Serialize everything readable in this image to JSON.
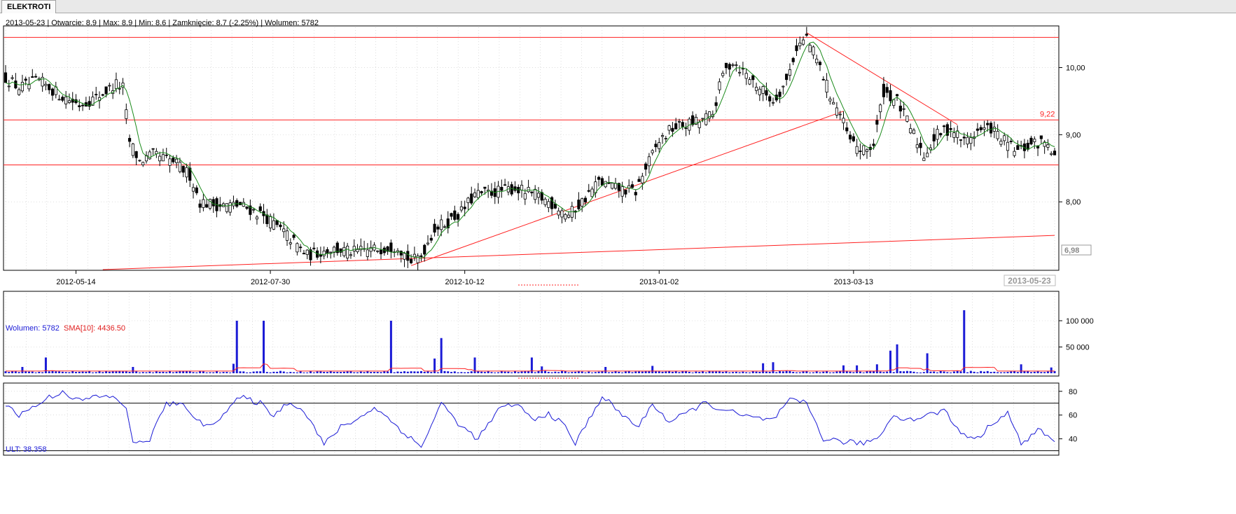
{
  "tab": {
    "label": "ELEKTROTI"
  },
  "info": {
    "text": "2013-05-23 | Otwarcie: 8.9 | Max: 8.9 | Min: 8.6 | Zamknięcie: 8.7 (-2.25%)   | Wolumen: 5782"
  },
  "volume_header": {
    "label": "Wolumen: 5782",
    "sma_label": "SMA[10]: 4436.50"
  },
  "ult_header": {
    "label": "ULT: 38.358"
  },
  "colors": {
    "candle": "#000000",
    "sma": "#1a8a1a",
    "trendline": "#ff2020",
    "volume_bar": "#1b1bd6",
    "volume_sma": "#ff2020",
    "ult": "#1b1bd6",
    "grid": "#c8c8c8"
  },
  "chart_data": [
    {
      "type": "candlestick",
      "name": "price",
      "x_tick_labels": [
        "2012-05-14",
        "2012-07-30",
        "2012-10-12",
        "2013-01-02",
        "2013-03-13"
      ],
      "last_date_label": "2013-05-23",
      "y_ticks": [
        8.0,
        9.0,
        10.0
      ],
      "y_tick_labels": [
        "8,00",
        "9,00",
        "10,00"
      ],
      "y_range": [
        6.98,
        10.6
      ],
      "y_min_label": "6,98",
      "horizontal_levels": [
        10.45,
        9.22,
        8.55
      ],
      "level_label": "9,22",
      "indicator": "SMA",
      "anchors": [
        [
          0,
          9.85
        ],
        [
          4,
          9.7
        ],
        [
          10,
          9.8
        ],
        [
          16,
          9.6
        ],
        [
          22,
          9.45
        ],
        [
          27,
          9.55
        ],
        [
          33,
          9.75
        ],
        [
          35,
          9.7
        ],
        [
          37,
          8.9
        ],
        [
          40,
          8.6
        ],
        [
          44,
          8.7
        ],
        [
          50,
          8.6
        ],
        [
          55,
          8.4
        ],
        [
          58,
          8.0
        ],
        [
          63,
          7.95
        ],
        [
          70,
          7.95
        ],
        [
          77,
          7.8
        ],
        [
          84,
          7.5
        ],
        [
          90,
          7.2
        ],
        [
          97,
          7.3
        ],
        [
          104,
          7.25
        ],
        [
          111,
          7.3
        ],
        [
          117,
          7.35
        ],
        [
          121,
          7.1
        ],
        [
          124,
          7.2
        ],
        [
          128,
          7.6
        ],
        [
          132,
          7.7
        ],
        [
          136,
          7.85
        ],
        [
          140,
          8.1
        ],
        [
          146,
          8.15
        ],
        [
          152,
          8.2
        ],
        [
          158,
          8.1
        ],
        [
          164,
          7.95
        ],
        [
          168,
          7.8
        ],
        [
          172,
          8.0
        ],
        [
          177,
          8.3
        ],
        [
          182,
          8.2
        ],
        [
          188,
          8.15
        ],
        [
          191,
          8.5
        ],
        [
          195,
          8.9
        ],
        [
          199,
          9.1
        ],
        [
          203,
          9.15
        ],
        [
          207,
          9.2
        ],
        [
          211,
          9.3
        ],
        [
          214,
          9.9
        ],
        [
          217,
          10.1
        ],
        [
          221,
          9.9
        ],
        [
          225,
          9.7
        ],
        [
          229,
          9.5
        ],
        [
          233,
          9.8
        ],
        [
          236,
          10.3
        ],
        [
          239,
          10.45
        ],
        [
          243,
          10.0
        ],
        [
          246,
          9.6
        ],
        [
          249,
          9.3
        ],
        [
          252,
          8.9
        ],
        [
          256,
          8.75
        ],
        [
          259,
          8.85
        ],
        [
          262,
          9.65
        ],
        [
          266,
          9.5
        ],
        [
          270,
          9.1
        ],
        [
          274,
          8.7
        ],
        [
          278,
          9.0
        ],
        [
          282,
          9.1
        ],
        [
          286,
          8.9
        ],
        [
          290,
          9.05
        ],
        [
          294,
          9.1
        ],
        [
          298,
          8.9
        ],
        [
          302,
          8.75
        ],
        [
          306,
          8.85
        ],
        [
          311,
          8.9
        ],
        [
          313,
          8.7
        ]
      ],
      "n_points": 314
    },
    {
      "type": "bar",
      "name": "volume",
      "y_ticks": [
        50000,
        100000
      ],
      "y_tick_labels": [
        "50 000",
        "100 000"
      ],
      "y_range": [
        0,
        140000
      ],
      "baseline": 3500,
      "sma_baseline": 6000,
      "spikes": [
        [
          5,
          12000
        ],
        [
          12,
          30000
        ],
        [
          38,
          12000
        ],
        [
          68,
          18000
        ],
        [
          69,
          100000
        ],
        [
          77,
          100000
        ],
        [
          115,
          100000
        ],
        [
          128,
          28000
        ],
        [
          130,
          67000
        ],
        [
          140,
          30000
        ],
        [
          157,
          30000
        ],
        [
          160,
          13000
        ],
        [
          179,
          12000
        ],
        [
          193,
          14000
        ],
        [
          226,
          19000
        ],
        [
          229,
          21000
        ],
        [
          250,
          15000
        ],
        [
          254,
          15000
        ],
        [
          260,
          17000
        ],
        [
          264,
          43000
        ],
        [
          266,
          55000
        ],
        [
          275,
          38000
        ],
        [
          286,
          120000
        ],
        [
          303,
          17000
        ],
        [
          312,
          11000
        ]
      ]
    },
    {
      "type": "line",
      "name": "ULT",
      "y_ticks": [
        40,
        60,
        80
      ],
      "y_tick_labels": [
        "40",
        "60",
        "80"
      ],
      "y_range": [
        28,
        84
      ],
      "reference_levels": [
        70,
        30
      ],
      "anchors": [
        [
          0,
          70
        ],
        [
          4,
          60
        ],
        [
          9,
          68
        ],
        [
          13,
          75
        ],
        [
          17,
          80
        ],
        [
          22,
          72
        ],
        [
          28,
          76
        ],
        [
          33,
          74
        ],
        [
          36,
          67
        ],
        [
          38,
          35
        ],
        [
          43,
          40
        ],
        [
          48,
          70
        ],
        [
          54,
          67
        ],
        [
          59,
          50
        ],
        [
          64,
          58
        ],
        [
          70,
          75
        ],
        [
          76,
          70
        ],
        [
          80,
          60
        ],
        [
          85,
          72
        ],
        [
          90,
          60
        ],
        [
          95,
          35
        ],
        [
          100,
          50
        ],
        [
          106,
          58
        ],
        [
          110,
          67
        ],
        [
          115,
          55
        ],
        [
          119,
          45
        ],
        [
          124,
          33
        ],
        [
          130,
          70
        ],
        [
          136,
          50
        ],
        [
          141,
          40
        ],
        [
          147,
          64
        ],
        [
          152,
          70
        ],
        [
          158,
          55
        ],
        [
          162,
          62
        ],
        [
          167,
          50
        ],
        [
          170,
          36
        ],
        [
          174,
          56
        ],
        [
          178,
          76
        ],
        [
          184,
          60
        ],
        [
          189,
          50
        ],
        [
          193,
          70
        ],
        [
          198,
          54
        ],
        [
          203,
          61
        ],
        [
          208,
          70
        ],
        [
          214,
          65
        ],
        [
          219,
          60
        ],
        [
          224,
          57
        ],
        [
          229,
          56
        ],
        [
          234,
          72
        ],
        [
          239,
          70
        ],
        [
          244,
          40
        ],
        [
          249,
          38
        ],
        [
          255,
          36
        ],
        [
          260,
          40
        ],
        [
          265,
          60
        ],
        [
          270,
          56
        ],
        [
          275,
          60
        ],
        [
          280,
          64
        ],
        [
          285,
          45
        ],
        [
          290,
          40
        ],
        [
          295,
          55
        ],
        [
          299,
          62
        ],
        [
          303,
          35
        ],
        [
          308,
          48
        ],
        [
          313,
          38
        ]
      ]
    }
  ]
}
